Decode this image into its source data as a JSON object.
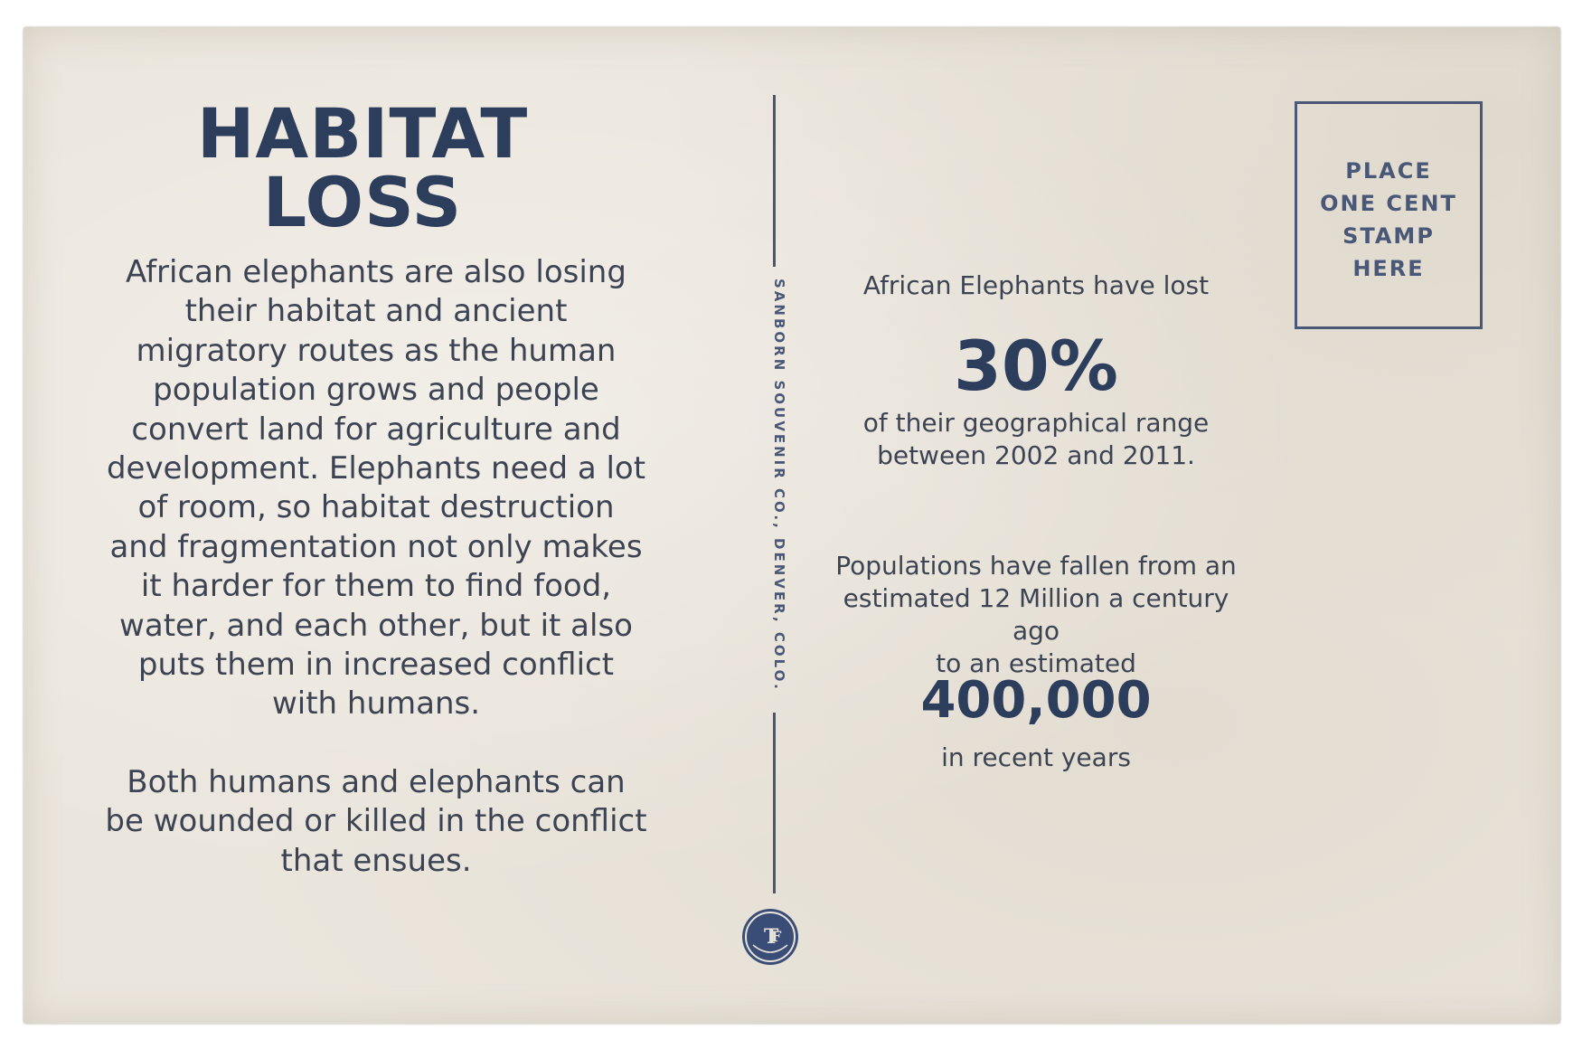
{
  "postcard": {
    "title": "HABITAT LOSS",
    "left_paragraphs": [
      "African elephants are also losing their habitat and ancient migratory routes as the human population grows and people convert land for agriculture and development. Elephants need a lot of room, so habitat destruction and fragmentation not only makes it harder for them to find food, water, and each other, but it also puts them in increased conflict with humans.",
      "Both humans and elephants can be wounded or killed in the conflict that ensues."
    ],
    "divider_text": "SANBORN SOUVENIR CO., DENVER, COLO.",
    "stats": {
      "intro": "African Elephants have lost",
      "percent": "30%",
      "percent_caption_line1": "of their geographical range",
      "percent_caption_line2": "between 2002 and 2011.",
      "population_line1": "Populations have fallen from an",
      "population_line2": "estimated 12 Million a century ago",
      "population_line3": "to an estimated",
      "population_value": "400,000",
      "population_caption": "in recent years"
    },
    "stamp_box": {
      "lines": [
        "PLACE",
        "ONE CENT",
        "STAMP",
        "HERE"
      ]
    },
    "emblem": {
      "icon": "publisher-logo-icon",
      "color": "#3a4d77"
    },
    "ink_color": "#2d3d5c",
    "paper_color": "#ebe6dd"
  }
}
